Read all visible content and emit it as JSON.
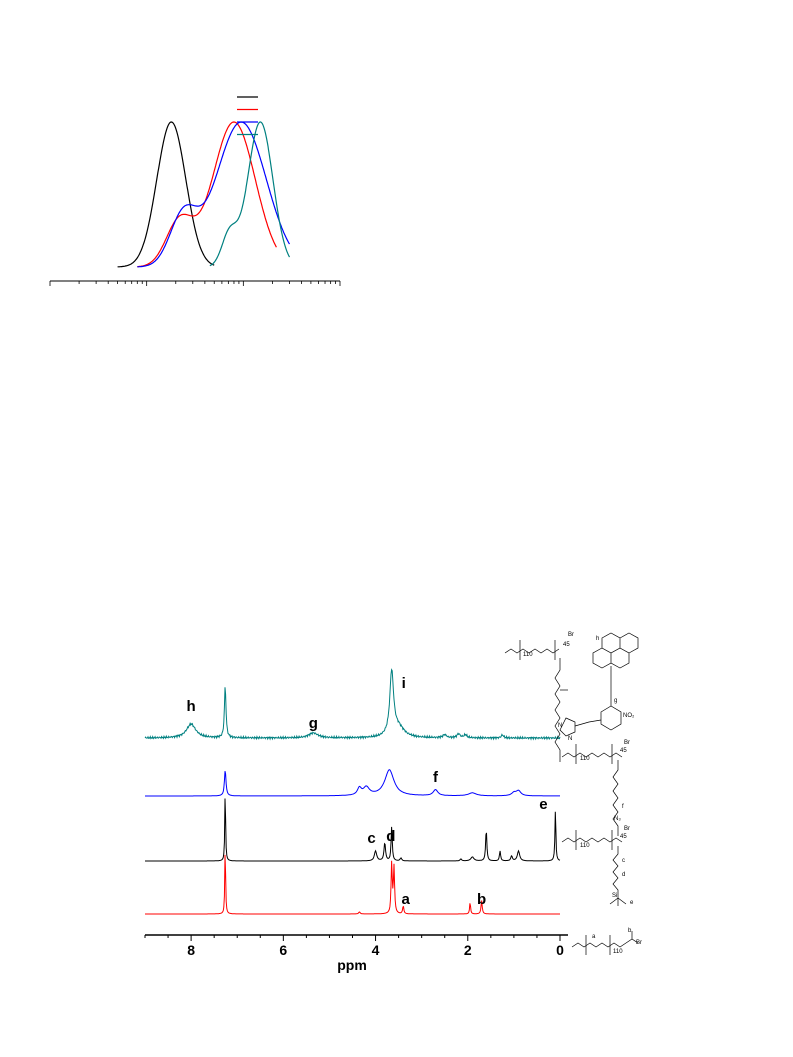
{
  "chart_data": [
    {
      "type": "line",
      "title": "",
      "xlabel": "",
      "ylabel": "",
      "x_scale": "log",
      "grid": false,
      "legend": {
        "position": "top-right",
        "entries": 4,
        "text": ""
      },
      "colors": [
        "#000000",
        "#ff0000",
        "#0000ff",
        "#008080"
      ],
      "series": [
        {
          "color": "#000000",
          "peak_x": 0.18,
          "x_range": [
            0.05,
            0.5
          ]
        },
        {
          "color": "#ff0000",
          "peak_x": 0.8,
          "x_range": [
            0.08,
            2.2
          ]
        },
        {
          "color": "#0000ff",
          "peak_x": 0.95,
          "x_range": [
            0.08,
            3.0
          ]
        },
        {
          "color": "#008080",
          "peak_x": 1.5,
          "x_range": [
            0.45,
            3.0
          ]
        }
      ]
    },
    {
      "type": "line",
      "title": "",
      "xlabel": "ppm",
      "ylabel": "",
      "xlim": [
        9,
        0
      ],
      "x_ticks": [
        "8",
        "6",
        "4",
        "2",
        "0"
      ],
      "grid": false,
      "colors": [
        "#008080",
        "#0000ff",
        "#000000",
        "#ff0000"
      ],
      "series": [
        {
          "color": "#008080",
          "peaks_ppm": [
            8.0,
            7.26,
            5.35,
            3.65,
            2.1
          ],
          "labels": [
            {
              "text": "h",
              "ppm": 8.0
            },
            {
              "text": "g",
              "ppm": 5.35
            },
            {
              "text": "i",
              "ppm": 3.65
            }
          ]
        },
        {
          "color": "#0000ff",
          "peaks_ppm": [
            7.26,
            4.35,
            4.2,
            3.7,
            2.7,
            1.9,
            0.9
          ],
          "labels": [
            {
              "text": "f",
              "ppm": 2.7
            }
          ]
        },
        {
          "color": "#000000",
          "peaks_ppm": [
            7.26,
            4.0,
            3.8,
            3.65,
            1.6,
            1.3,
            0.9,
            0.1
          ],
          "labels": [
            {
              "text": "c",
              "ppm": 4.0
            },
            {
              "text": "d",
              "ppm": 3.8
            },
            {
              "text": "e",
              "ppm": 0.1
            }
          ]
        },
        {
          "color": "#ff0000",
          "peaks_ppm": [
            7.26,
            3.65,
            3.4,
            1.95,
            1.7
          ],
          "labels": [
            {
              "text": "a",
              "ppm": 3.65
            },
            {
              "text": "b",
              "ppm": 1.7
            }
          ]
        }
      ]
    }
  ],
  "structures": [
    {
      "texts": [
        "Br",
        "45",
        "110",
        "h",
        "g",
        "NO₂",
        "N",
        "N"
      ]
    },
    {
      "texts": [
        "Br",
        "45",
        "110",
        "f",
        "N₃"
      ]
    },
    {
      "texts": [
        "Br",
        "45",
        "110",
        "c",
        "d",
        "Si",
        "e"
      ]
    },
    {
      "texts": [
        "Br",
        "110",
        "a",
        "b"
      ]
    }
  ]
}
